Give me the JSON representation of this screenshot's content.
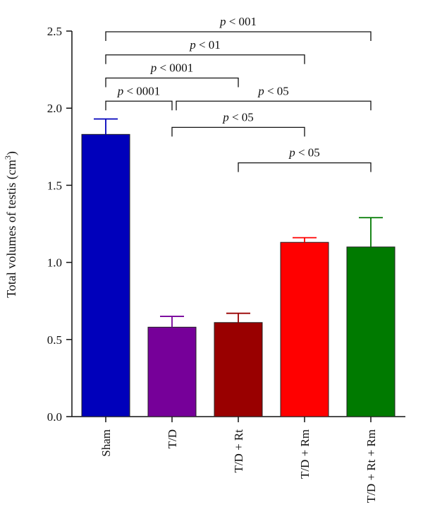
{
  "chart_data": {
    "type": "bar",
    "title": "",
    "xlabel": "",
    "ylabel": "Total volumes of testis (cm",
    "ylabel_sup": "3",
    "ylabel_close": ")",
    "ylim": [
      0,
      2.5
    ],
    "yticks": [
      0.0,
      0.5,
      1.0,
      1.5,
      2.0,
      2.5
    ],
    "ytick_labels": [
      "0.0",
      "0.5",
      "1.0",
      "1.5",
      "2.0",
      "2.5"
    ],
    "grid": false,
    "categories": [
      "Sham",
      "T/D",
      "T/D + Rt",
      "T/D + Rm",
      "T/D + Rt + Rm"
    ],
    "values": [
      1.83,
      0.58,
      0.61,
      1.13,
      1.1
    ],
    "errors": [
      0.1,
      0.07,
      0.06,
      0.03,
      0.19
    ],
    "colors": [
      "#0000bb",
      "#760099",
      "#990000",
      "#ff0000",
      "#007a00"
    ],
    "significance": [
      {
        "from": 0,
        "to": 4,
        "p": "p",
        "text": " < 001",
        "level": 2.5
      },
      {
        "from": 0,
        "to": 3,
        "p": "p",
        "text": " < 01",
        "level": 2.35
      },
      {
        "from": 0,
        "to": 2,
        "p": "p",
        "text": " < 0001",
        "level": 2.2
      },
      {
        "from": 0,
        "to": 1,
        "p": "p",
        "text": " < 0001",
        "level": 2.05
      },
      {
        "from": 1,
        "to": 4,
        "p": "p",
        "text": " < 05",
        "level": 2.05
      },
      {
        "from": 1,
        "to": 3,
        "p": "p",
        "text": " < 05",
        "level": 1.88
      },
      {
        "from": 2,
        "to": 4,
        "p": "p",
        "text": " < 05",
        "level": 1.65
      }
    ]
  }
}
